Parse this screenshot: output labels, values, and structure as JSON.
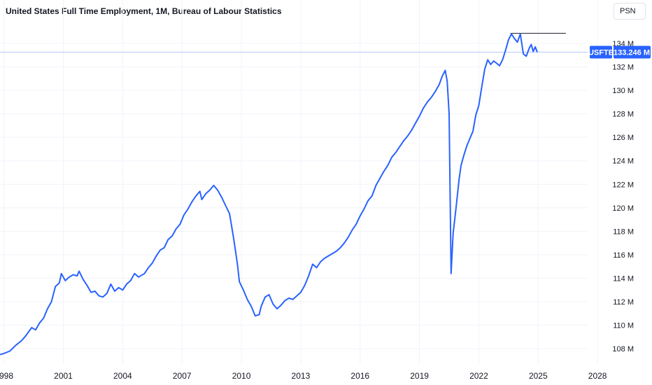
{
  "header": {
    "title": "United States Full Time Employment, 1M, Bureau of Labour Statistics",
    "scale_button": "PSN"
  },
  "colors": {
    "line": "#2962ff",
    "badge": "#2962ff",
    "grid": "#f0f3fa",
    "resistance": "#131722"
  },
  "last_value": {
    "symbol": "USFTE",
    "value": "133.246 M",
    "y": 133.246
  },
  "resistance_line": {
    "x_start": 2023.6,
    "x_end": 2026.4,
    "y": 134.85
  },
  "chart_data": {
    "type": "line",
    "title": "United States Full Time Employment, 1M, Bureau of Labour Statistics",
    "xlabel": "",
    "ylabel": "",
    "xlim": [
      1997.8,
      2027.5
    ],
    "ylim": [
      106.7,
      135.9
    ],
    "y_ticks": [
      108,
      110,
      112,
      114,
      116,
      118,
      120,
      122,
      124,
      126,
      128,
      130,
      132,
      134
    ],
    "y_tick_labels": [
      "108 M",
      "110 M",
      "112 M",
      "114 M",
      "116 M",
      "118 M",
      "120 M",
      "122 M",
      "124 M",
      "126 M",
      "128 M",
      "130 M",
      "132 M",
      "134 M"
    ],
    "x_ticks": [
      1998,
      2001,
      2004,
      2007,
      2010,
      2013,
      2016,
      2019,
      2022,
      2025,
      2028
    ],
    "x_tick_labels": [
      "1998",
      "2001",
      "2004",
      "2007",
      "2010",
      "2013",
      "2016",
      "2019",
      "2022",
      "2025",
      "2028"
    ],
    "series": [
      {
        "values": [
          [
            1997.8,
            107.5
          ],
          [
            1998.0,
            107.6
          ],
          [
            1998.3,
            107.8
          ],
          [
            1998.6,
            108.3
          ],
          [
            1998.9,
            108.7
          ],
          [
            1999.1,
            109.1
          ],
          [
            1999.4,
            109.8
          ],
          [
            1999.6,
            109.6
          ],
          [
            1999.8,
            110.2
          ],
          [
            2000.0,
            110.6
          ],
          [
            2000.2,
            111.4
          ],
          [
            2000.4,
            112.0
          ],
          [
            2000.6,
            113.3
          ],
          [
            2000.8,
            113.6
          ],
          [
            2000.9,
            114.4
          ],
          [
            2001.1,
            113.8
          ],
          [
            2001.3,
            114.1
          ],
          [
            2001.5,
            114.3
          ],
          [
            2001.7,
            114.2
          ],
          [
            2001.8,
            114.6
          ],
          [
            2002.0,
            113.9
          ],
          [
            2002.2,
            113.4
          ],
          [
            2002.4,
            112.8
          ],
          [
            2002.6,
            112.9
          ],
          [
            2002.8,
            112.5
          ],
          [
            2003.0,
            112.4
          ],
          [
            2003.2,
            112.7
          ],
          [
            2003.4,
            113.5
          ],
          [
            2003.6,
            112.9
          ],
          [
            2003.8,
            113.2
          ],
          [
            2004.0,
            113.0
          ],
          [
            2004.2,
            113.5
          ],
          [
            2004.4,
            113.8
          ],
          [
            2004.6,
            114.4
          ],
          [
            2004.8,
            114.1
          ],
          [
            2005.1,
            114.4
          ],
          [
            2005.3,
            114.9
          ],
          [
            2005.5,
            115.3
          ],
          [
            2005.7,
            115.9
          ],
          [
            2005.9,
            116.4
          ],
          [
            2006.1,
            116.6
          ],
          [
            2006.3,
            117.3
          ],
          [
            2006.5,
            117.6
          ],
          [
            2006.7,
            118.2
          ],
          [
            2006.9,
            118.6
          ],
          [
            2007.1,
            119.4
          ],
          [
            2007.3,
            119.9
          ],
          [
            2007.5,
            120.5
          ],
          [
            2007.7,
            121.0
          ],
          [
            2007.9,
            121.4
          ],
          [
            2008.0,
            120.7
          ],
          [
            2008.2,
            121.2
          ],
          [
            2008.4,
            121.5
          ],
          [
            2008.6,
            121.9
          ],
          [
            2008.8,
            121.5
          ],
          [
            2009.0,
            120.9
          ],
          [
            2009.2,
            120.2
          ],
          [
            2009.4,
            119.5
          ],
          [
            2009.6,
            117.5
          ],
          [
            2009.8,
            115.2
          ],
          [
            2009.9,
            113.7
          ],
          [
            2010.1,
            113.0
          ],
          [
            2010.3,
            112.2
          ],
          [
            2010.5,
            111.6
          ],
          [
            2010.7,
            110.8
          ],
          [
            2010.9,
            110.9
          ],
          [
            2011.0,
            111.6
          ],
          [
            2011.2,
            112.4
          ],
          [
            2011.4,
            112.6
          ],
          [
            2011.6,
            111.8
          ],
          [
            2011.8,
            111.4
          ],
          [
            2012.0,
            111.7
          ],
          [
            2012.2,
            112.1
          ],
          [
            2012.4,
            112.3
          ],
          [
            2012.6,
            112.2
          ],
          [
            2012.8,
            112.5
          ],
          [
            2013.0,
            112.8
          ],
          [
            2013.2,
            113.4
          ],
          [
            2013.4,
            114.2
          ],
          [
            2013.6,
            115.2
          ],
          [
            2013.8,
            114.9
          ],
          [
            2014.0,
            115.4
          ],
          [
            2014.2,
            115.7
          ],
          [
            2014.4,
            115.9
          ],
          [
            2014.6,
            116.1
          ],
          [
            2014.8,
            116.3
          ],
          [
            2015.0,
            116.6
          ],
          [
            2015.2,
            117.0
          ],
          [
            2015.4,
            117.5
          ],
          [
            2015.6,
            118.1
          ],
          [
            2015.8,
            118.6
          ],
          [
            2016.0,
            119.3
          ],
          [
            2016.2,
            119.9
          ],
          [
            2016.4,
            120.6
          ],
          [
            2016.6,
            121.0
          ],
          [
            2016.8,
            121.9
          ],
          [
            2017.0,
            122.5
          ],
          [
            2017.2,
            123.1
          ],
          [
            2017.4,
            123.6
          ],
          [
            2017.6,
            124.3
          ],
          [
            2017.8,
            124.7
          ],
          [
            2018.0,
            125.2
          ],
          [
            2018.2,
            125.7
          ],
          [
            2018.4,
            126.1
          ],
          [
            2018.6,
            126.6
          ],
          [
            2018.8,
            127.2
          ],
          [
            2019.0,
            127.8
          ],
          [
            2019.2,
            128.5
          ],
          [
            2019.4,
            129.0
          ],
          [
            2019.6,
            129.4
          ],
          [
            2019.8,
            129.9
          ],
          [
            2020.0,
            130.5
          ],
          [
            2020.15,
            131.2
          ],
          [
            2020.3,
            131.7
          ],
          [
            2020.4,
            130.8
          ],
          [
            2020.5,
            128.0
          ],
          [
            2020.6,
            114.4
          ],
          [
            2020.7,
            117.8
          ],
          [
            2020.85,
            120.0
          ],
          [
            2021.0,
            122.4
          ],
          [
            2021.1,
            123.6
          ],
          [
            2021.25,
            124.5
          ],
          [
            2021.4,
            125.3
          ],
          [
            2021.55,
            125.9
          ],
          [
            2021.7,
            126.5
          ],
          [
            2021.85,
            127.9
          ],
          [
            2022.0,
            128.7
          ],
          [
            2022.15,
            130.3
          ],
          [
            2022.3,
            131.8
          ],
          [
            2022.45,
            132.6
          ],
          [
            2022.6,
            132.2
          ],
          [
            2022.75,
            132.5
          ],
          [
            2022.9,
            132.3
          ],
          [
            2023.05,
            132.1
          ],
          [
            2023.2,
            132.6
          ],
          [
            2023.35,
            133.4
          ],
          [
            2023.5,
            134.3
          ],
          [
            2023.65,
            134.8
          ],
          [
            2023.8,
            134.4
          ],
          [
            2023.95,
            134.1
          ],
          [
            2024.1,
            134.8
          ],
          [
            2024.25,
            133.1
          ],
          [
            2024.4,
            132.9
          ],
          [
            2024.55,
            133.6
          ],
          [
            2024.65,
            133.9
          ],
          [
            2024.75,
            133.3
          ],
          [
            2024.85,
            133.7
          ],
          [
            2024.95,
            133.25
          ]
        ]
      }
    ]
  }
}
